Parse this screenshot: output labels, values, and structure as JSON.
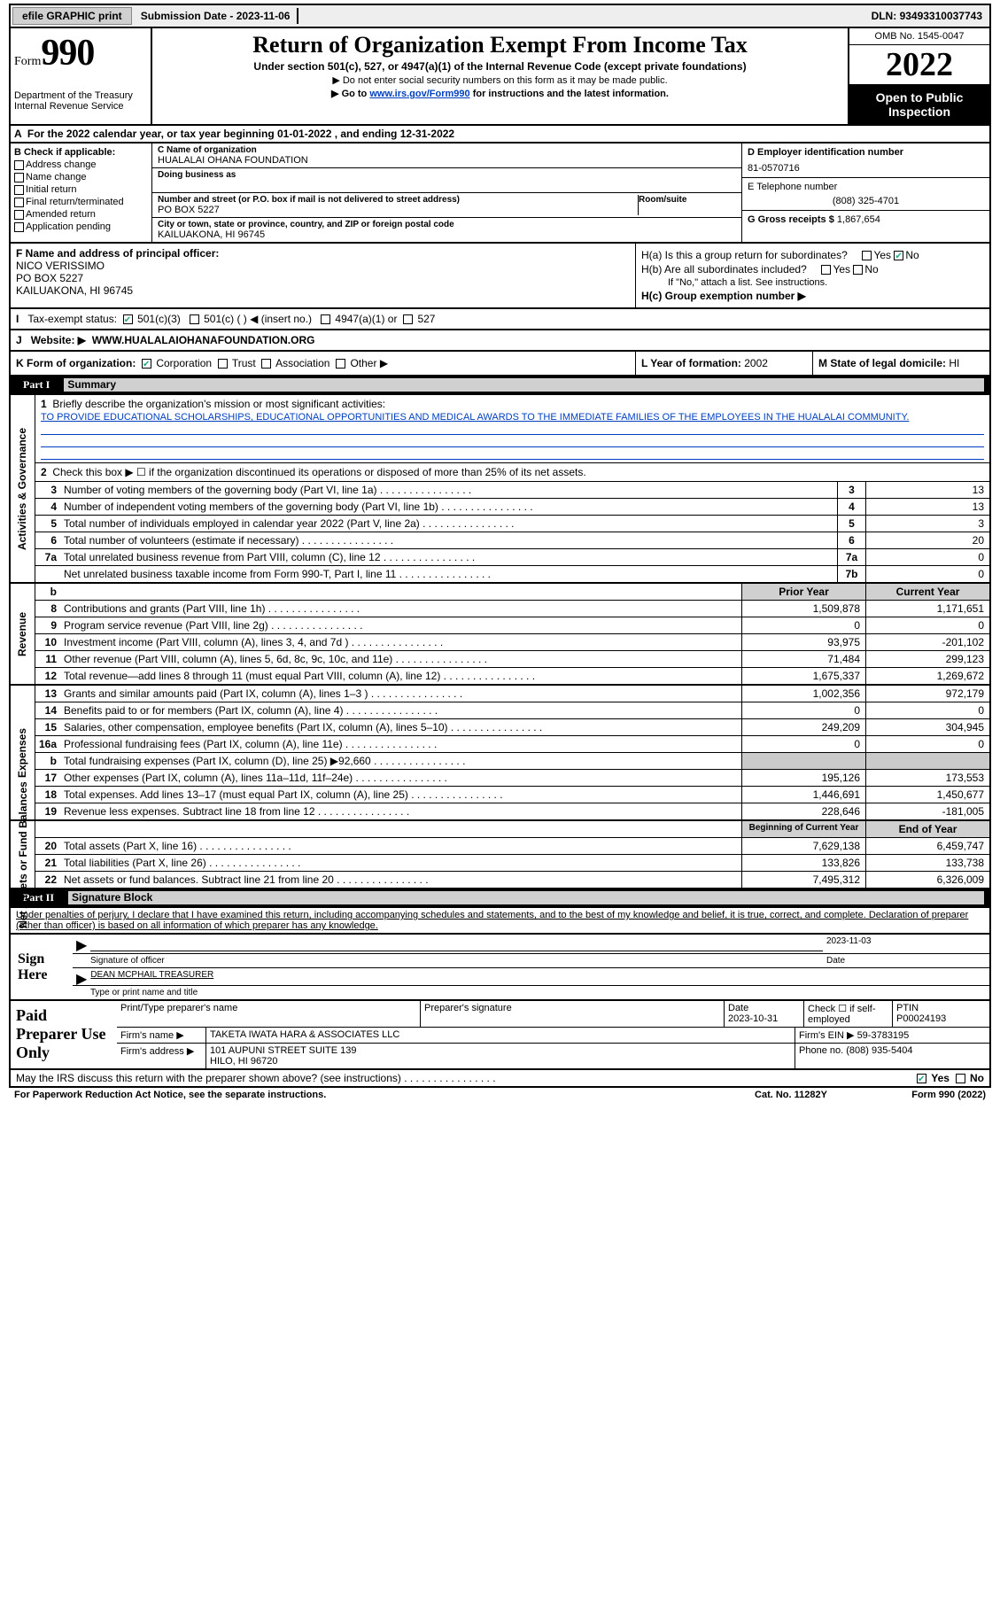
{
  "topbar": {
    "efile": "efile GRAPHIC print",
    "submission_label": "Submission Date - ",
    "submission_date": "2023-11-06",
    "dln_label": "DLN: ",
    "dln": "93493310037743"
  },
  "header": {
    "form_label": "Form",
    "form_no": "990",
    "dept1": "Department of the Treasury",
    "dept2": "Internal Revenue Service",
    "title": "Return of Organization Exempt From Income Tax",
    "sub1": "Under section 501(c), 527, or 4947(a)(1) of the Internal Revenue Code (except private foundations)",
    "sub2": "▶ Do not enter social security numbers on this form as it may be made public.",
    "sub3_pre": "▶ Go to ",
    "sub3_link": "www.irs.gov/Form990",
    "sub3_post": " for instructions and the latest information.",
    "omb": "OMB No. 1545-0047",
    "year": "2022",
    "inspect": "Open to Public Inspection"
  },
  "A": {
    "text": "For the 2022 calendar year, or tax year beginning 01-01-2022    , and ending 12-31-2022"
  },
  "B": {
    "label": "B Check if applicable:",
    "opts": [
      "Address change",
      "Name change",
      "Initial return",
      "Final return/terminated",
      "Amended return",
      "Application pending"
    ]
  },
  "C": {
    "name_lab": "C Name of organization",
    "name": "HUALALAI OHANA FOUNDATION",
    "dba_lab": "Doing business as",
    "street_lab": "Number and street (or P.O. box if mail is not delivered to street address)",
    "room_lab": "Room/suite",
    "street": "PO BOX 5227",
    "city_lab": "City or town, state or province, country, and ZIP or foreign postal code",
    "city": "KAILUAKONA, HI  96745"
  },
  "D": {
    "lab": "D Employer identification number",
    "val": "81-0570716"
  },
  "E": {
    "lab": "E Telephone number",
    "val": "(808) 325-4701"
  },
  "G": {
    "lab": "G Gross receipts $ ",
    "val": "1,867,654"
  },
  "F": {
    "lab": "F  Name and address of principal officer:",
    "l1": "NICO VERISSIMO",
    "l2": "PO BOX 5227",
    "l3": "KAILUAKONA, HI  96745"
  },
  "H": {
    "a": "H(a)  Is this a group return for subordinates?",
    "b": "H(b)  Are all subordinates included?",
    "bnote": "If \"No,\" attach a list. See instructions.",
    "c": "H(c)  Group exemption number ▶"
  },
  "I": {
    "lab": "Tax-exempt status:",
    "o1": "501(c)(3)",
    "o2": "501(c) (  ) ◀ (insert no.)",
    "o3": "4947(a)(1) or",
    "o4": "527"
  },
  "J": {
    "lab": "Website: ▶",
    "val": "WWW.HUALALAIOHANAFOUNDATION.ORG"
  },
  "K": {
    "lab": "K Form of organization:",
    "o1": "Corporation",
    "o2": "Trust",
    "o3": "Association",
    "o4": "Other ▶"
  },
  "L": {
    "lab": "L Year of formation: ",
    "val": "2002"
  },
  "M": {
    "lab": "M State of legal domicile: ",
    "val": "HI"
  },
  "parts": {
    "p1": "Part I",
    "p1t": "Summary",
    "p2": "Part II",
    "p2t": "Signature Block"
  },
  "summary": {
    "sec1_label": "Activities & Governance",
    "l1_lab": "Briefly describe the organization's mission or most significant activities:",
    "l1_txt": "TO PROVIDE EDUCATIONAL SCHOLARSHIPS, EDUCATIONAL OPPORTUNITIES AND MEDICAL AWARDS TO THE IMMEDIATE FAMILIES OF THE EMPLOYEES IN THE HUALALAI COMMUNITY.",
    "l2": "Check this box ▶ ☐  if the organization discontinued its operations or disposed of more than 25% of its net assets.",
    "rows_ag": [
      {
        "n": "3",
        "t": "Number of voting members of the governing body (Part VI, line 1a)",
        "b": "3",
        "v": "13"
      },
      {
        "n": "4",
        "t": "Number of independent voting members of the governing body (Part VI, line 1b)",
        "b": "4",
        "v": "13"
      },
      {
        "n": "5",
        "t": "Total number of individuals employed in calendar year 2022 (Part V, line 2a)",
        "b": "5",
        "v": "3"
      },
      {
        "n": "6",
        "t": "Total number of volunteers (estimate if necessary)",
        "b": "6",
        "v": "20"
      },
      {
        "n": "7a",
        "t": "Total unrelated business revenue from Part VIII, column (C), line 12",
        "b": "7a",
        "v": "0"
      },
      {
        "n": "",
        "t": "Net unrelated business taxable income from Form 990-T, Part I, line 11",
        "b": "7b",
        "v": "0"
      }
    ],
    "col_h1": "Prior Year",
    "col_h2": "Current Year",
    "sec2_label": "Revenue",
    "rows_rev": [
      {
        "n": "8",
        "t": "Contributions and grants (Part VIII, line 1h)",
        "p": "1,509,878",
        "c": "1,171,651"
      },
      {
        "n": "9",
        "t": "Program service revenue (Part VIII, line 2g)",
        "p": "0",
        "c": "0"
      },
      {
        "n": "10",
        "t": "Investment income (Part VIII, column (A), lines 3, 4, and 7d )",
        "p": "93,975",
        "c": "-201,102"
      },
      {
        "n": "11",
        "t": "Other revenue (Part VIII, column (A), lines 5, 6d, 8c, 9c, 10c, and 11e)",
        "p": "71,484",
        "c": "299,123"
      },
      {
        "n": "12",
        "t": "Total revenue—add lines 8 through 11 (must equal Part VIII, column (A), line 12)",
        "p": "1,675,337",
        "c": "1,269,672"
      }
    ],
    "sec3_label": "Expenses",
    "rows_exp": [
      {
        "n": "13",
        "t": "Grants and similar amounts paid (Part IX, column (A), lines 1–3 )",
        "p": "1,002,356",
        "c": "972,179"
      },
      {
        "n": "14",
        "t": "Benefits paid to or for members (Part IX, column (A), line 4)",
        "p": "0",
        "c": "0"
      },
      {
        "n": "15",
        "t": "Salaries, other compensation, employee benefits (Part IX, column (A), lines 5–10)",
        "p": "249,209",
        "c": "304,945"
      },
      {
        "n": "16a",
        "t": "Professional fundraising fees (Part IX, column (A), line 11e)",
        "p": "0",
        "c": "0"
      },
      {
        "n": "b",
        "t": "Total fundraising expenses (Part IX, column (D), line 25) ▶92,660",
        "p": "",
        "c": "",
        "shade": true
      },
      {
        "n": "17",
        "t": "Other expenses (Part IX, column (A), lines 11a–11d, 11f–24e)",
        "p": "195,126",
        "c": "173,553"
      },
      {
        "n": "18",
        "t": "Total expenses. Add lines 13–17 (must equal Part IX, column (A), line 25)",
        "p": "1,446,691",
        "c": "1,450,677"
      },
      {
        "n": "19",
        "t": "Revenue less expenses. Subtract line 18 from line 12",
        "p": "228,646",
        "c": "-181,005"
      }
    ],
    "sec4_label": "Net Assets or Fund Balances",
    "col_h3": "Beginning of Current Year",
    "col_h4": "End of Year",
    "rows_na": [
      {
        "n": "20",
        "t": "Total assets (Part X, line 16)",
        "p": "7,629,138",
        "c": "6,459,747"
      },
      {
        "n": "21",
        "t": "Total liabilities (Part X, line 26)",
        "p": "133,826",
        "c": "133,738"
      },
      {
        "n": "22",
        "t": "Net assets or fund balances. Subtract line 21 from line 20",
        "p": "7,495,312",
        "c": "6,326,009"
      }
    ]
  },
  "sig": {
    "decl": "Under penalties of perjury, I declare that I have examined this return, including accompanying schedules and statements, and to the best of my knowledge and belief, it is true, correct, and complete. Declaration of preparer (other than officer) is based on all information of which preparer has any knowledge.",
    "sign_here": "Sign Here",
    "sig_officer": "Signature of officer",
    "date_l": "Date",
    "date": "2023-11-03",
    "name": "DEAN MCPHAIL  TREASURER",
    "name_l": "Type or print name and title"
  },
  "paid": {
    "lab": "Paid Preparer Use Only",
    "h1": "Print/Type preparer's name",
    "h2": "Preparer's signature",
    "h3": "Date",
    "h3v": "2023-10-31",
    "h4": "Check ☐ if self-employed",
    "h5": "PTIN",
    "h5v": "P00024193",
    "firm_l": "Firm's name    ▶",
    "firm": "TAKETA IWATA HARA & ASSOCIATES LLC",
    "ein_l": "Firm's EIN ▶ ",
    "ein": "59-3783195",
    "addr_l": "Firm's address ▶",
    "addr1": "101 AUPUNI STREET SUITE 139",
    "addr2": "HILO, HI  96720",
    "phone_l": "Phone no. ",
    "phone": "(808) 935-5404"
  },
  "foot": {
    "discuss": "May the IRS discuss this return with the preparer shown above? (see instructions)",
    "yes": "Yes",
    "no": "No",
    "pra": "For Paperwork Reduction Act Notice, see the separate instructions.",
    "cat": "Cat. No. 11282Y",
    "form": "Form 990 (2022)"
  }
}
